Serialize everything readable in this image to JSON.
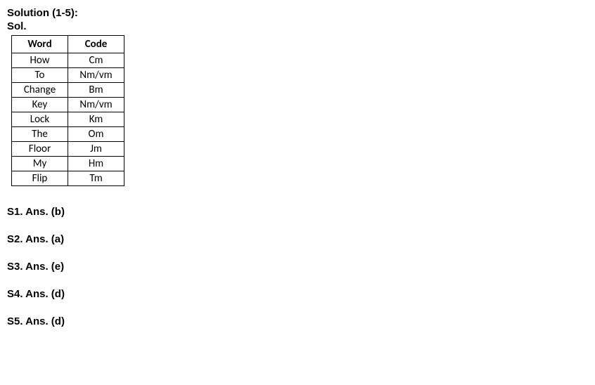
{
  "heading": "Solution (1-5):",
  "sol_label": "Sol.",
  "table": {
    "columns": [
      "Word",
      "Code"
    ],
    "rows": [
      [
        "How",
        "Cm"
      ],
      [
        "To",
        "Nm/vm"
      ],
      [
        "Change",
        "Bm"
      ],
      [
        "Key",
        "Nm/vm"
      ],
      [
        "Lock",
        "Km"
      ],
      [
        "The",
        "Om"
      ],
      [
        "Floor",
        "Jm"
      ],
      [
        "My",
        "Hm"
      ],
      [
        "Flip",
        "Tm"
      ]
    ]
  },
  "answers": [
    "S1. Ans. (b)",
    "S2. Ans. (a)",
    "S3. Ans. (e)",
    "S4. Ans. (d)",
    "S5. Ans. (d)"
  ]
}
